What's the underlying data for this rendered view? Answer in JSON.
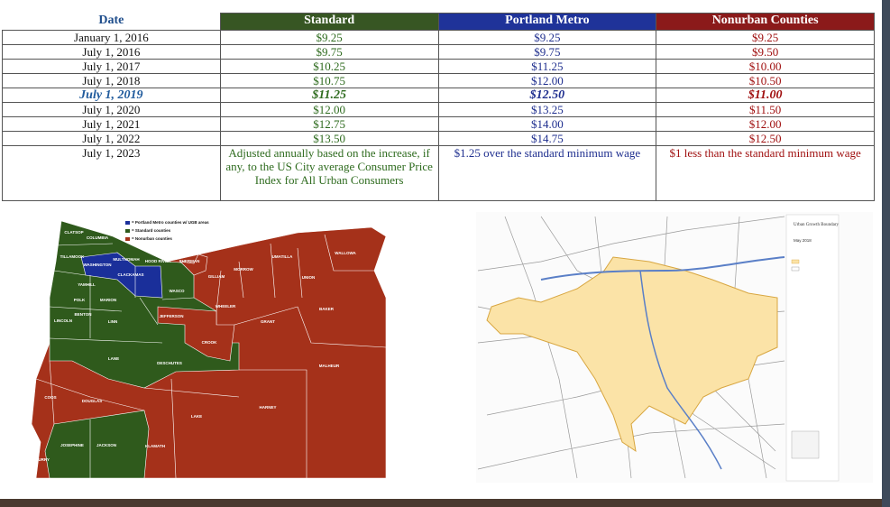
{
  "table": {
    "header": [
      "Date",
      "Standard",
      "Portland Metro",
      "Nonurban Counties"
    ],
    "rows": [
      [
        "January 1, 2016",
        "$9.25",
        "$9.25",
        "$9.25"
      ],
      [
        "July 1, 2016",
        "$9.75",
        "$9.75",
        "$9.50"
      ],
      [
        "July 1, 2017",
        "$10.25",
        "$11.25",
        "$10.00"
      ],
      [
        "July 1, 2018",
        "$10.75",
        "$12.00",
        "$10.50"
      ],
      [
        "July 1, 2019",
        "$11.25",
        "$12.50",
        "$11.00"
      ],
      [
        "July 1, 2020",
        "$12.00",
        "$13.25",
        "$11.50"
      ],
      [
        "July 1, 2021",
        "$12.75",
        "$14.00",
        "$12.00"
      ],
      [
        "July 1, 2022",
        "$13.50",
        "$14.75",
        "$12.50"
      ],
      [
        "July 1, 2023",
        "Adjusted annually based on the increase, if any, to the US City average Consumer Price Index for All Urban Consumers",
        "$1.25 over the standard minimum wage",
        "$1 less than the standard minimum wage"
      ]
    ]
  },
  "county_map": {
    "legend": [
      "= Portland Metro counties w/ UGB areas",
      "= Standard counties",
      "= Nonurban counties"
    ],
    "counties": [
      "CLATSOP",
      "COLUMBIA",
      "TILLAMOOK",
      "WASHINGTON",
      "MULTNOMAH",
      "HOOD RIVER",
      "CLACKAMAS",
      "YAMHILL",
      "POLK",
      "MARION",
      "BENTON",
      "LINCOLN",
      "LINN",
      "LANE",
      "WASCO",
      "SHERMAN",
      "GILLIAM",
      "MORROW",
      "UMATILLA",
      "UNION",
      "WALLOWA",
      "WHEELER",
      "JEFFERSON",
      "GRANT",
      "BAKER",
      "CROOK",
      "DESCHUTES",
      "MALHEUR",
      "HARNEY",
      "LAKE",
      "KLAMATH",
      "DOUGLAS",
      "COOS",
      "CURRY",
      "JOSEPHINE",
      "JACKSON"
    ]
  },
  "ugb_map": {
    "title": "Urban Growth Boundary",
    "date": "May 2018"
  }
}
